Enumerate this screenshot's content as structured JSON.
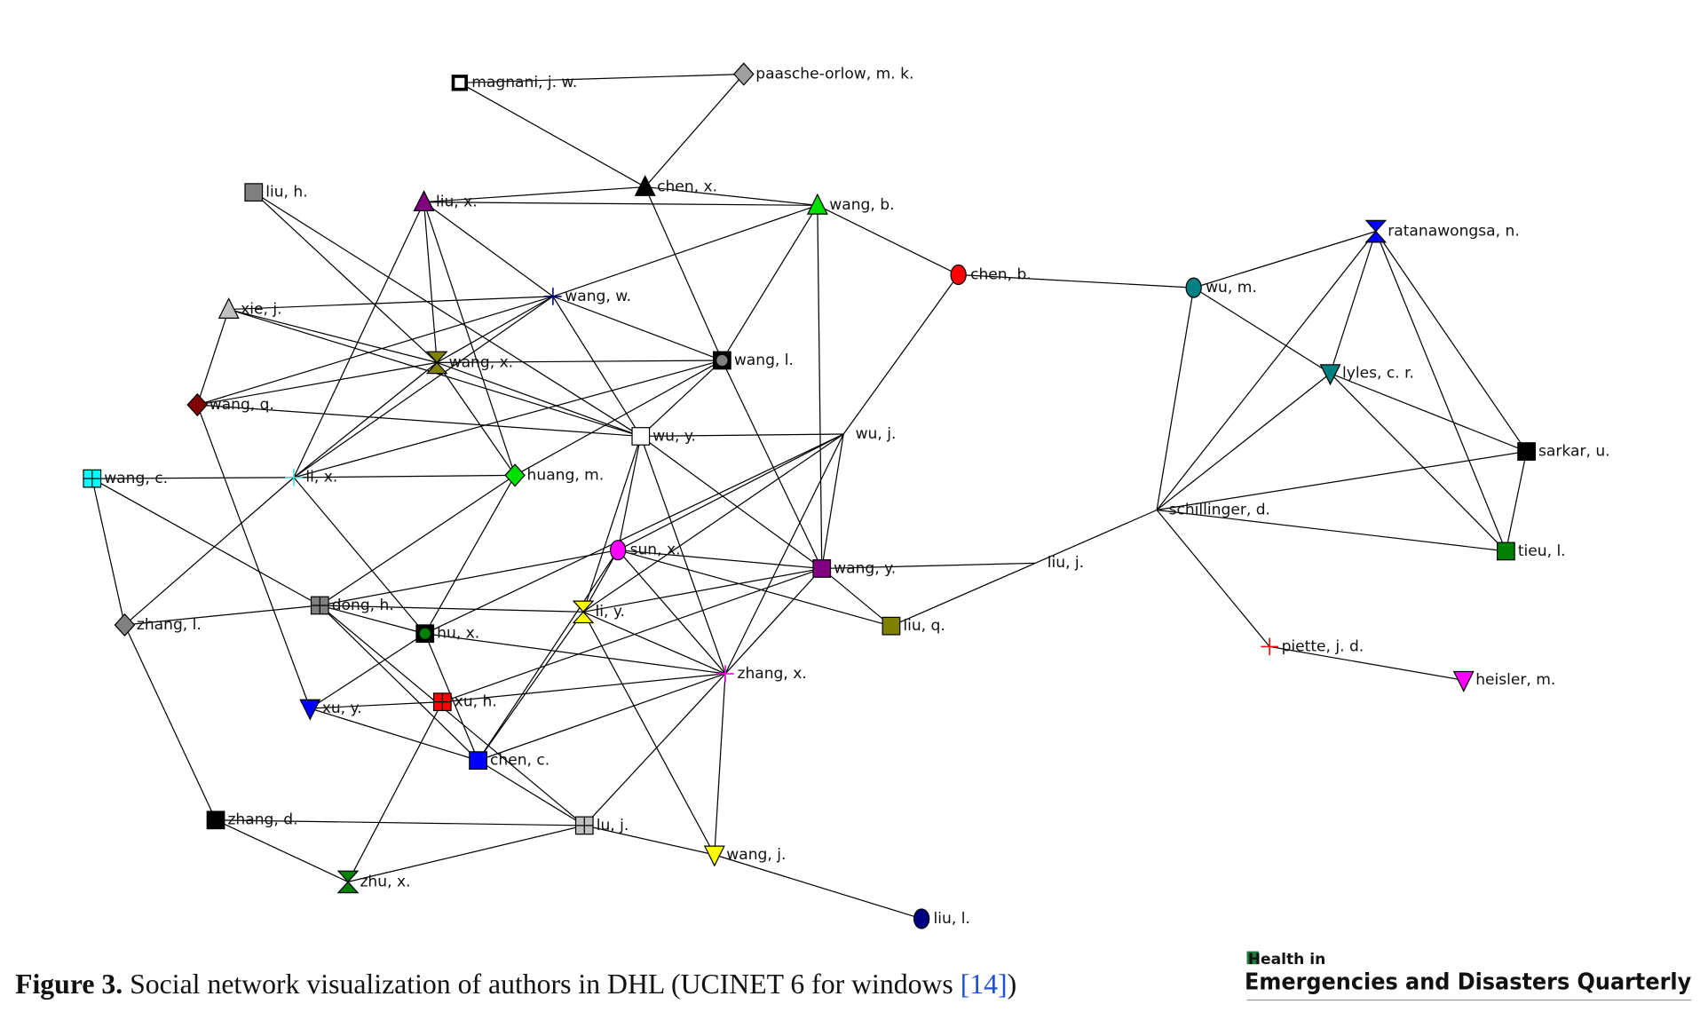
{
  "figure": {
    "caption_label": "Figure 3.",
    "caption_text": " Social network visualization of authors in DHL (UCINET 6 for windows ",
    "caption_ref": "[14]",
    "caption_close": ")"
  },
  "journal_logo": {
    "line1": "Health in",
    "line2": "Emergencies and Disasters Quarterly",
    "accent_color": "#1e7b3c"
  },
  "network": {
    "nodes": [
      {
        "name": "magnani, j. w.",
        "shape": "square-outline",
        "color": "#000000"
      },
      {
        "name": "paasche-orlow, m. k.",
        "shape": "diamond",
        "color": "#a0a0a0"
      },
      {
        "name": "chen, x.",
        "shape": "triangle",
        "color": "#000000"
      },
      {
        "name": "liu, h.",
        "shape": "square",
        "color": "#808080"
      },
      {
        "name": "liu, x.",
        "shape": "triangle",
        "color": "#800080"
      },
      {
        "name": "wang, b.",
        "shape": "triangle",
        "color": "#00e000"
      },
      {
        "name": "chen, b.",
        "shape": "circle",
        "color": "#ff0000"
      },
      {
        "name": "wu, m.",
        "shape": "circle",
        "color": "#008080"
      },
      {
        "name": "ratanawongsa, n.",
        "shape": "hourglass",
        "color": "#0000ff"
      },
      {
        "name": "xie, j.",
        "shape": "triangle",
        "color": "#c0c0c0"
      },
      {
        "name": "wang, w.",
        "shape": "plus",
        "color": "#000080"
      },
      {
        "name": "wang, x.",
        "shape": "hourglass",
        "color": "#808000"
      },
      {
        "name": "wang, l.",
        "shape": "square-dot",
        "color": "#808080"
      },
      {
        "name": "lyles, c. r.",
        "shape": "triangle-down",
        "color": "#008080"
      },
      {
        "name": "wang, q.",
        "shape": "diamond",
        "color": "#800000"
      },
      {
        "name": "wu, y.",
        "shape": "square",
        "color": "#ffffff"
      },
      {
        "name": "wu, j.",
        "shape": "none",
        "color": "#000000"
      },
      {
        "name": "sarkar, u.",
        "shape": "square",
        "color": "#000000"
      },
      {
        "name": "wang, c.",
        "shape": "grid-square",
        "color": "#00ffff"
      },
      {
        "name": "li, x.",
        "shape": "plus",
        "color": "#40e0e0"
      },
      {
        "name": "huang, m.",
        "shape": "diamond",
        "color": "#00e000"
      },
      {
        "name": "schillinger, d.",
        "shape": "none",
        "color": "#000000"
      },
      {
        "name": "sun, x.",
        "shape": "circle",
        "color": "#ff00ff"
      },
      {
        "name": "wang, y.",
        "shape": "square",
        "color": "#800080"
      },
      {
        "name": "liu, j.",
        "shape": "none",
        "color": "#000000"
      },
      {
        "name": "tieu, l.",
        "shape": "square",
        "color": "#008000"
      },
      {
        "name": "dong, h.",
        "shape": "grid-square",
        "color": "#808080"
      },
      {
        "name": "li, y.",
        "shape": "hourglass",
        "color": "#ffff00"
      },
      {
        "name": "zhang, l.",
        "shape": "diamond",
        "color": "#808080"
      },
      {
        "name": "hu, x.",
        "shape": "square-dot",
        "color": "#008000"
      },
      {
        "name": "liu, q.",
        "shape": "square",
        "color": "#808000"
      },
      {
        "name": "zhang, x.",
        "shape": "plus",
        "color": "#ff00ff"
      },
      {
        "name": "piette, j. d.",
        "shape": "plus",
        "color": "#ff0000"
      },
      {
        "name": "heisler, m.",
        "shape": "triangle-down",
        "color": "#ff00ff"
      },
      {
        "name": "xu, y.",
        "shape": "triangle-down",
        "color": "#0000ff"
      },
      {
        "name": "xu, h.",
        "shape": "grid-square",
        "color": "#ff0000"
      },
      {
        "name": "chen, c.",
        "shape": "square",
        "color": "#0000ff"
      },
      {
        "name": "zhang, d.",
        "shape": "square",
        "color": "#000000"
      },
      {
        "name": "lu, j.",
        "shape": "grid-square",
        "color": "#c0c0c0"
      },
      {
        "name": "wang, j.",
        "shape": "triangle-down",
        "color": "#ffff00"
      },
      {
        "name": "zhu, x.",
        "shape": "hourglass",
        "color": "#008000"
      },
      {
        "name": "liu, l.",
        "shape": "circle",
        "color": "#000080"
      }
    ],
    "edges": [
      [
        "magnani, j. w.",
        "paasche-orlow, m. k."
      ],
      [
        "magnani, j. w.",
        "chen, x."
      ],
      [
        "paasche-orlow, m. k.",
        "chen, x."
      ],
      [
        "chen, x.",
        "liu, x."
      ],
      [
        "chen, x.",
        "wang, b."
      ],
      [
        "liu, x.",
        "wang, b."
      ],
      [
        "chen, x.",
        "wang, l."
      ],
      [
        "liu, h.",
        "wang, x."
      ],
      [
        "liu, h.",
        "wu, y."
      ],
      [
        "liu, x.",
        "wang, w."
      ],
      [
        "liu, x.",
        "wang, x."
      ],
      [
        "liu, x.",
        "huang, m."
      ],
      [
        "liu, x.",
        "li, x."
      ],
      [
        "wang, b.",
        "wang, w."
      ],
      [
        "wang, b.",
        "wang, l."
      ],
      [
        "wang, b.",
        "wang, y."
      ],
      [
        "wang, b.",
        "chen, b."
      ],
      [
        "chen, b.",
        "wu, m."
      ],
      [
        "chen, b.",
        "wu, j."
      ],
      [
        "xie, j.",
        "wang, w."
      ],
      [
        "xie, j.",
        "wu, y."
      ],
      [
        "xie, j.",
        "wang, q."
      ],
      [
        "xie, j.",
        "wang, x."
      ],
      [
        "wang, w.",
        "wang, x."
      ],
      [
        "wang, w.",
        "wang, l."
      ],
      [
        "wang, w.",
        "wu, y."
      ],
      [
        "wang, w.",
        "wang, q."
      ],
      [
        "wang, w.",
        "li, x."
      ],
      [
        "wang, x.",
        "wang, l."
      ],
      [
        "wang, x.",
        "wu, y."
      ],
      [
        "wang, x.",
        "huang, m."
      ],
      [
        "wang, x.",
        "wang, q."
      ],
      [
        "wang, x.",
        "li, x."
      ],
      [
        "wang, l.",
        "wu, y."
      ],
      [
        "wang, l.",
        "li, x."
      ],
      [
        "wang, l.",
        "huang, m."
      ],
      [
        "wang, l.",
        "wang, y."
      ],
      [
        "wang, q.",
        "wu, y."
      ],
      [
        "wang, q.",
        "xu, y."
      ],
      [
        "wu, y.",
        "wu, j."
      ],
      [
        "wu, y.",
        "sun, x."
      ],
      [
        "wu, y.",
        "li, y."
      ],
      [
        "wu, y.",
        "zhang, x."
      ],
      [
        "wu, y.",
        "wang, y."
      ],
      [
        "wu, j.",
        "wang, y."
      ],
      [
        "wu, j.",
        "sun, x."
      ],
      [
        "wu, j.",
        "li, y."
      ],
      [
        "wu, j.",
        "zhang, x."
      ],
      [
        "wu, j.",
        "hu, x."
      ],
      [
        "wang, c.",
        "li, x."
      ],
      [
        "wang, c.",
        "zhang, l."
      ],
      [
        "wang, c.",
        "dong, h."
      ],
      [
        "li, x.",
        "huang, m."
      ],
      [
        "li, x.",
        "zhang, l."
      ],
      [
        "li, x.",
        "hu, x."
      ],
      [
        "huang, m.",
        "dong, h."
      ],
      [
        "huang, m.",
        "hu, x."
      ],
      [
        "sun, x.",
        "wang, y."
      ],
      [
        "sun, x.",
        "liu, q."
      ],
      [
        "sun, x.",
        "dong, h."
      ],
      [
        "sun, x.",
        "li, y."
      ],
      [
        "sun, x.",
        "zhang, x."
      ],
      [
        "sun, x.",
        "chen, c."
      ],
      [
        "wang, y.",
        "liu, j."
      ],
      [
        "wang, y.",
        "liu, q."
      ],
      [
        "wang, y.",
        "li, y."
      ],
      [
        "wang, y.",
        "zhang, x."
      ],
      [
        "wang, y.",
        "xu, h."
      ],
      [
        "liu, j.",
        "schillinger, d."
      ],
      [
        "liu, j.",
        "liu, q."
      ],
      [
        "dong, h.",
        "zhang, l."
      ],
      [
        "dong, h.",
        "li, y."
      ],
      [
        "dong, h.",
        "hu, x."
      ],
      [
        "dong, h.",
        "chen, c."
      ],
      [
        "dong, h.",
        "lu, j."
      ],
      [
        "li, y.",
        "zhang, x."
      ],
      [
        "li, y.",
        "wang, j."
      ],
      [
        "li, y.",
        "chen, c."
      ],
      [
        "hu, x.",
        "zhang, x."
      ],
      [
        "hu, x.",
        "xu, y."
      ],
      [
        "hu, x.",
        "chen, c."
      ],
      [
        "zhang, x.",
        "xu, h."
      ],
      [
        "zhang, x.",
        "chen, c."
      ],
      [
        "zhang, x.",
        "wang, j."
      ],
      [
        "zhang, x.",
        "lu, j."
      ],
      [
        "xu, y.",
        "xu, h."
      ],
      [
        "xu, y.",
        "chen, c."
      ],
      [
        "xu, h.",
        "zhu, x."
      ],
      [
        "chen, c.",
        "lu, j."
      ],
      [
        "zhang, l.",
        "zhang, d."
      ],
      [
        "zhang, d.",
        "lu, j."
      ],
      [
        "zhang, d.",
        "zhu, x."
      ],
      [
        "zhu, x.",
        "lu, j."
      ],
      [
        "lu, j.",
        "wang, j."
      ],
      [
        "wang, j.",
        "liu, l."
      ],
      [
        "wu, m.",
        "ratanawongsa, n."
      ],
      [
        "wu, m.",
        "lyles, c. r."
      ],
      [
        "wu, m.",
        "schillinger, d."
      ],
      [
        "ratanawongsa, n.",
        "lyles, c. r."
      ],
      [
        "ratanawongsa, n.",
        "sarkar, u."
      ],
      [
        "ratanawongsa, n.",
        "tieu, l."
      ],
      [
        "ratanawongsa, n.",
        "schillinger, d."
      ],
      [
        "lyles, c. r.",
        "sarkar, u."
      ],
      [
        "lyles, c. r.",
        "tieu, l."
      ],
      [
        "lyles, c. r.",
        "schillinger, d."
      ],
      [
        "sarkar, u.",
        "tieu, l."
      ],
      [
        "sarkar, u.",
        "schillinger, d."
      ],
      [
        "tieu, l.",
        "schillinger, d."
      ],
      [
        "schillinger, d.",
        "piette, j. d."
      ],
      [
        "piette, j. d.",
        "heisler, m."
      ]
    ]
  }
}
